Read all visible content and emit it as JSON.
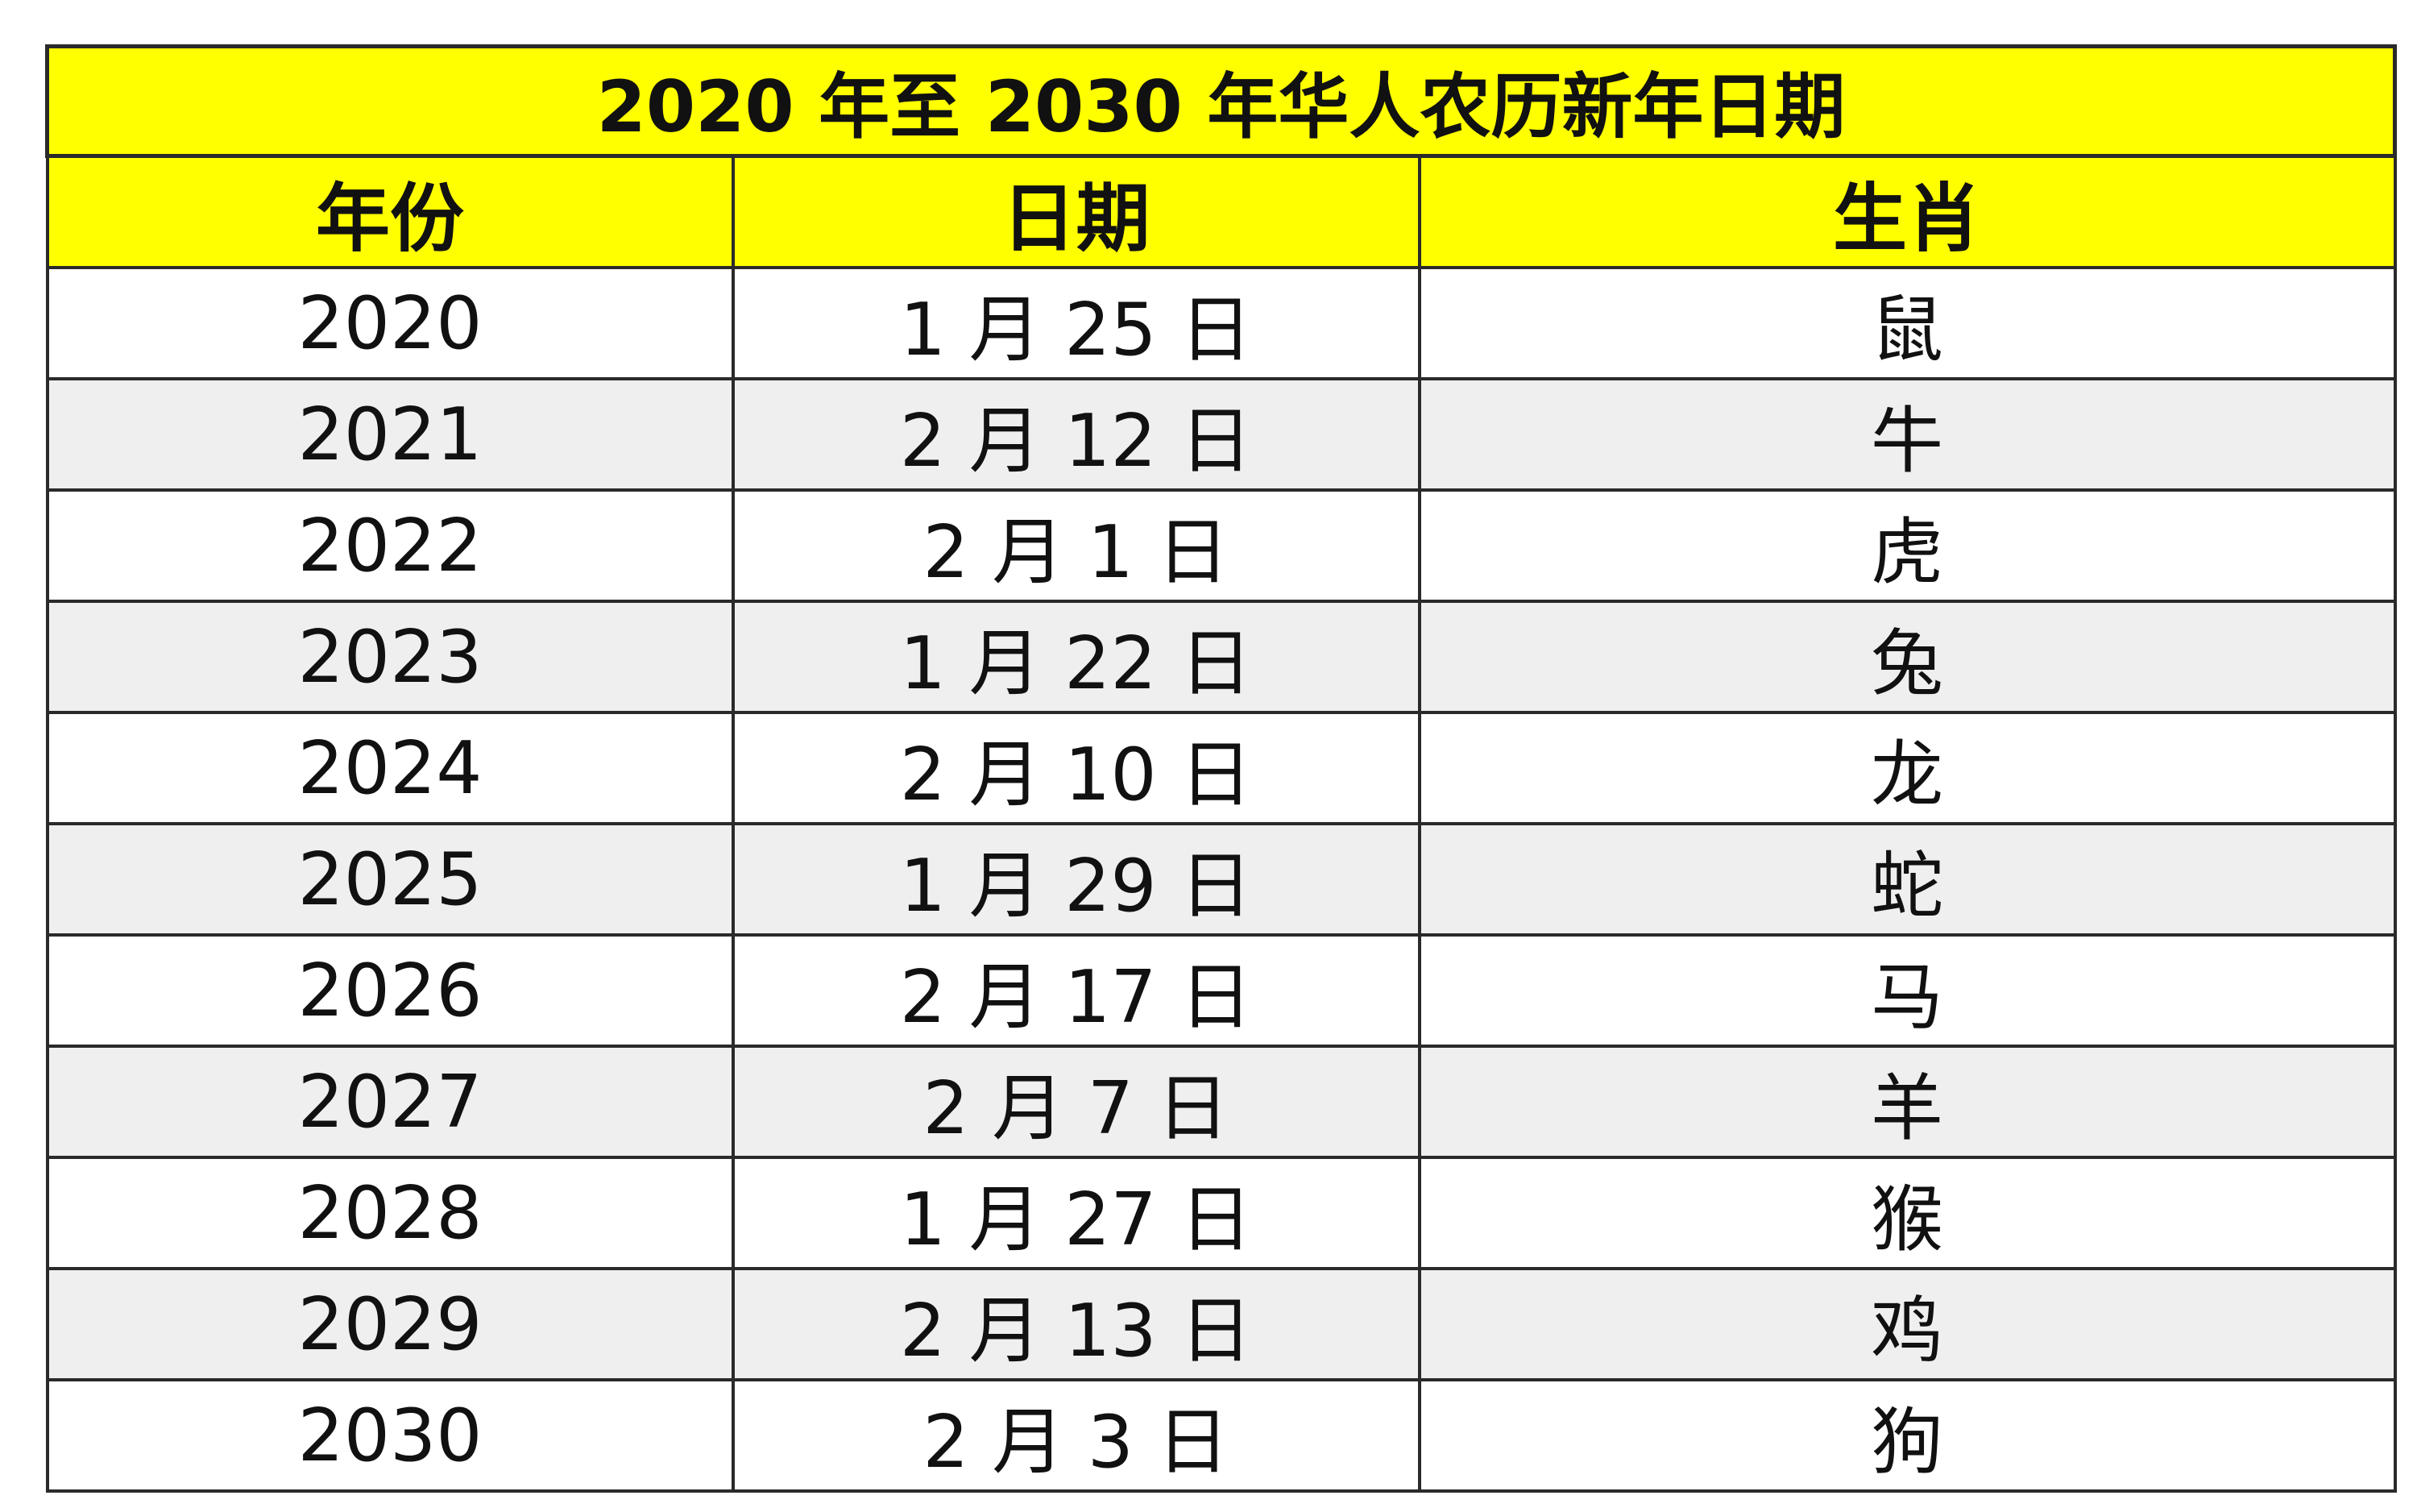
{
  "title": "2020 年至 2030 年华人农历新年日期",
  "headers": [
    "年份",
    "日期",
    "生肖"
  ],
  "rows": [
    {
      "year": "2020",
      "date": "1 月 25 日",
      "zodiac": "鼠"
    },
    {
      "year": "2021",
      "date": "2 月 12 日",
      "zodiac": "牛"
    },
    {
      "year": "2022",
      "date": "2 月 1 日",
      "zodiac": "虎"
    },
    {
      "year": "2023",
      "date": "1 月 22 日",
      "zodiac": "兔"
    },
    {
      "year": "2024",
      "date": "2 月 10 日",
      "zodiac": "龙"
    },
    {
      "year": "2025",
      "date": "1 月 29 日",
      "zodiac": "蛇"
    },
    {
      "year": "2026",
      "date": "2 月 17 日",
      "zodiac": "马"
    },
    {
      "year": "2027",
      "date": "2 月 7 日",
      "zodiac": "羊"
    },
    {
      "year": "2028",
      "date": "1 月 27 日",
      "zodiac": "猴"
    },
    {
      "year": "2029",
      "date": "2 月 13 日",
      "zodiac": "鸡"
    },
    {
      "year": "2030",
      "date": "2 月 3 日",
      "zodiac": "狗"
    }
  ],
  "colors": {
    "header_bg": "#ffff00",
    "alt_row_bg": "#efefef",
    "border": "#2a2a2a"
  }
}
